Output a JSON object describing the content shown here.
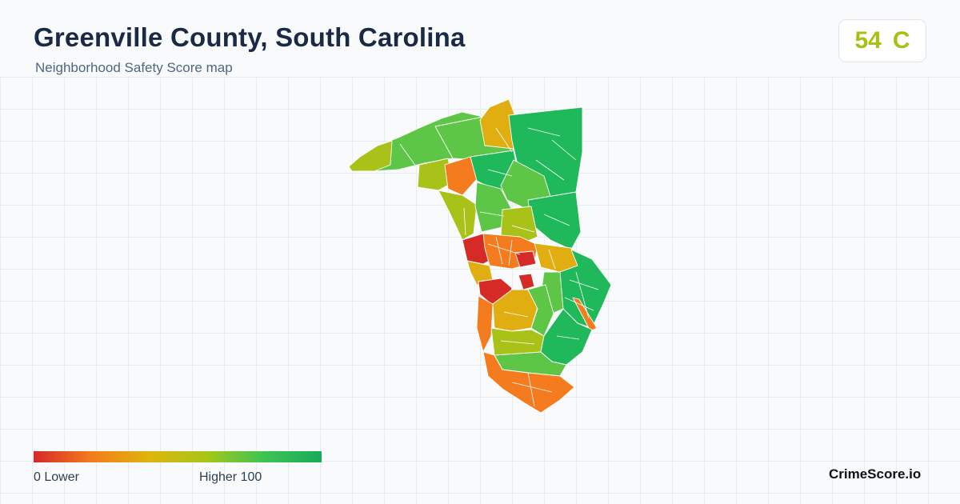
{
  "header": {
    "title": "Greenville County, South Carolina",
    "subtitle": "Neighborhood Safety Score map"
  },
  "score_badge": {
    "score": "54",
    "grade": "C",
    "color": "#a4c114"
  },
  "legend": {
    "min_label": "0  Lower",
    "max_label": "Higher  100",
    "colors": [
      "#d62828",
      "#f27c1e",
      "#e0b40c",
      "#a6c618",
      "#3ec452",
      "#19aa59"
    ]
  },
  "brand": "CrimeScore.io",
  "map_colors": {
    "very_low": "#d62a26",
    "low": "#f47b1e",
    "mid_low": "#e0ae10",
    "mid": "#a8c21a",
    "mid_high": "#5ec646",
    "high": "#1fb85a",
    "boundary": "#ffffff"
  }
}
